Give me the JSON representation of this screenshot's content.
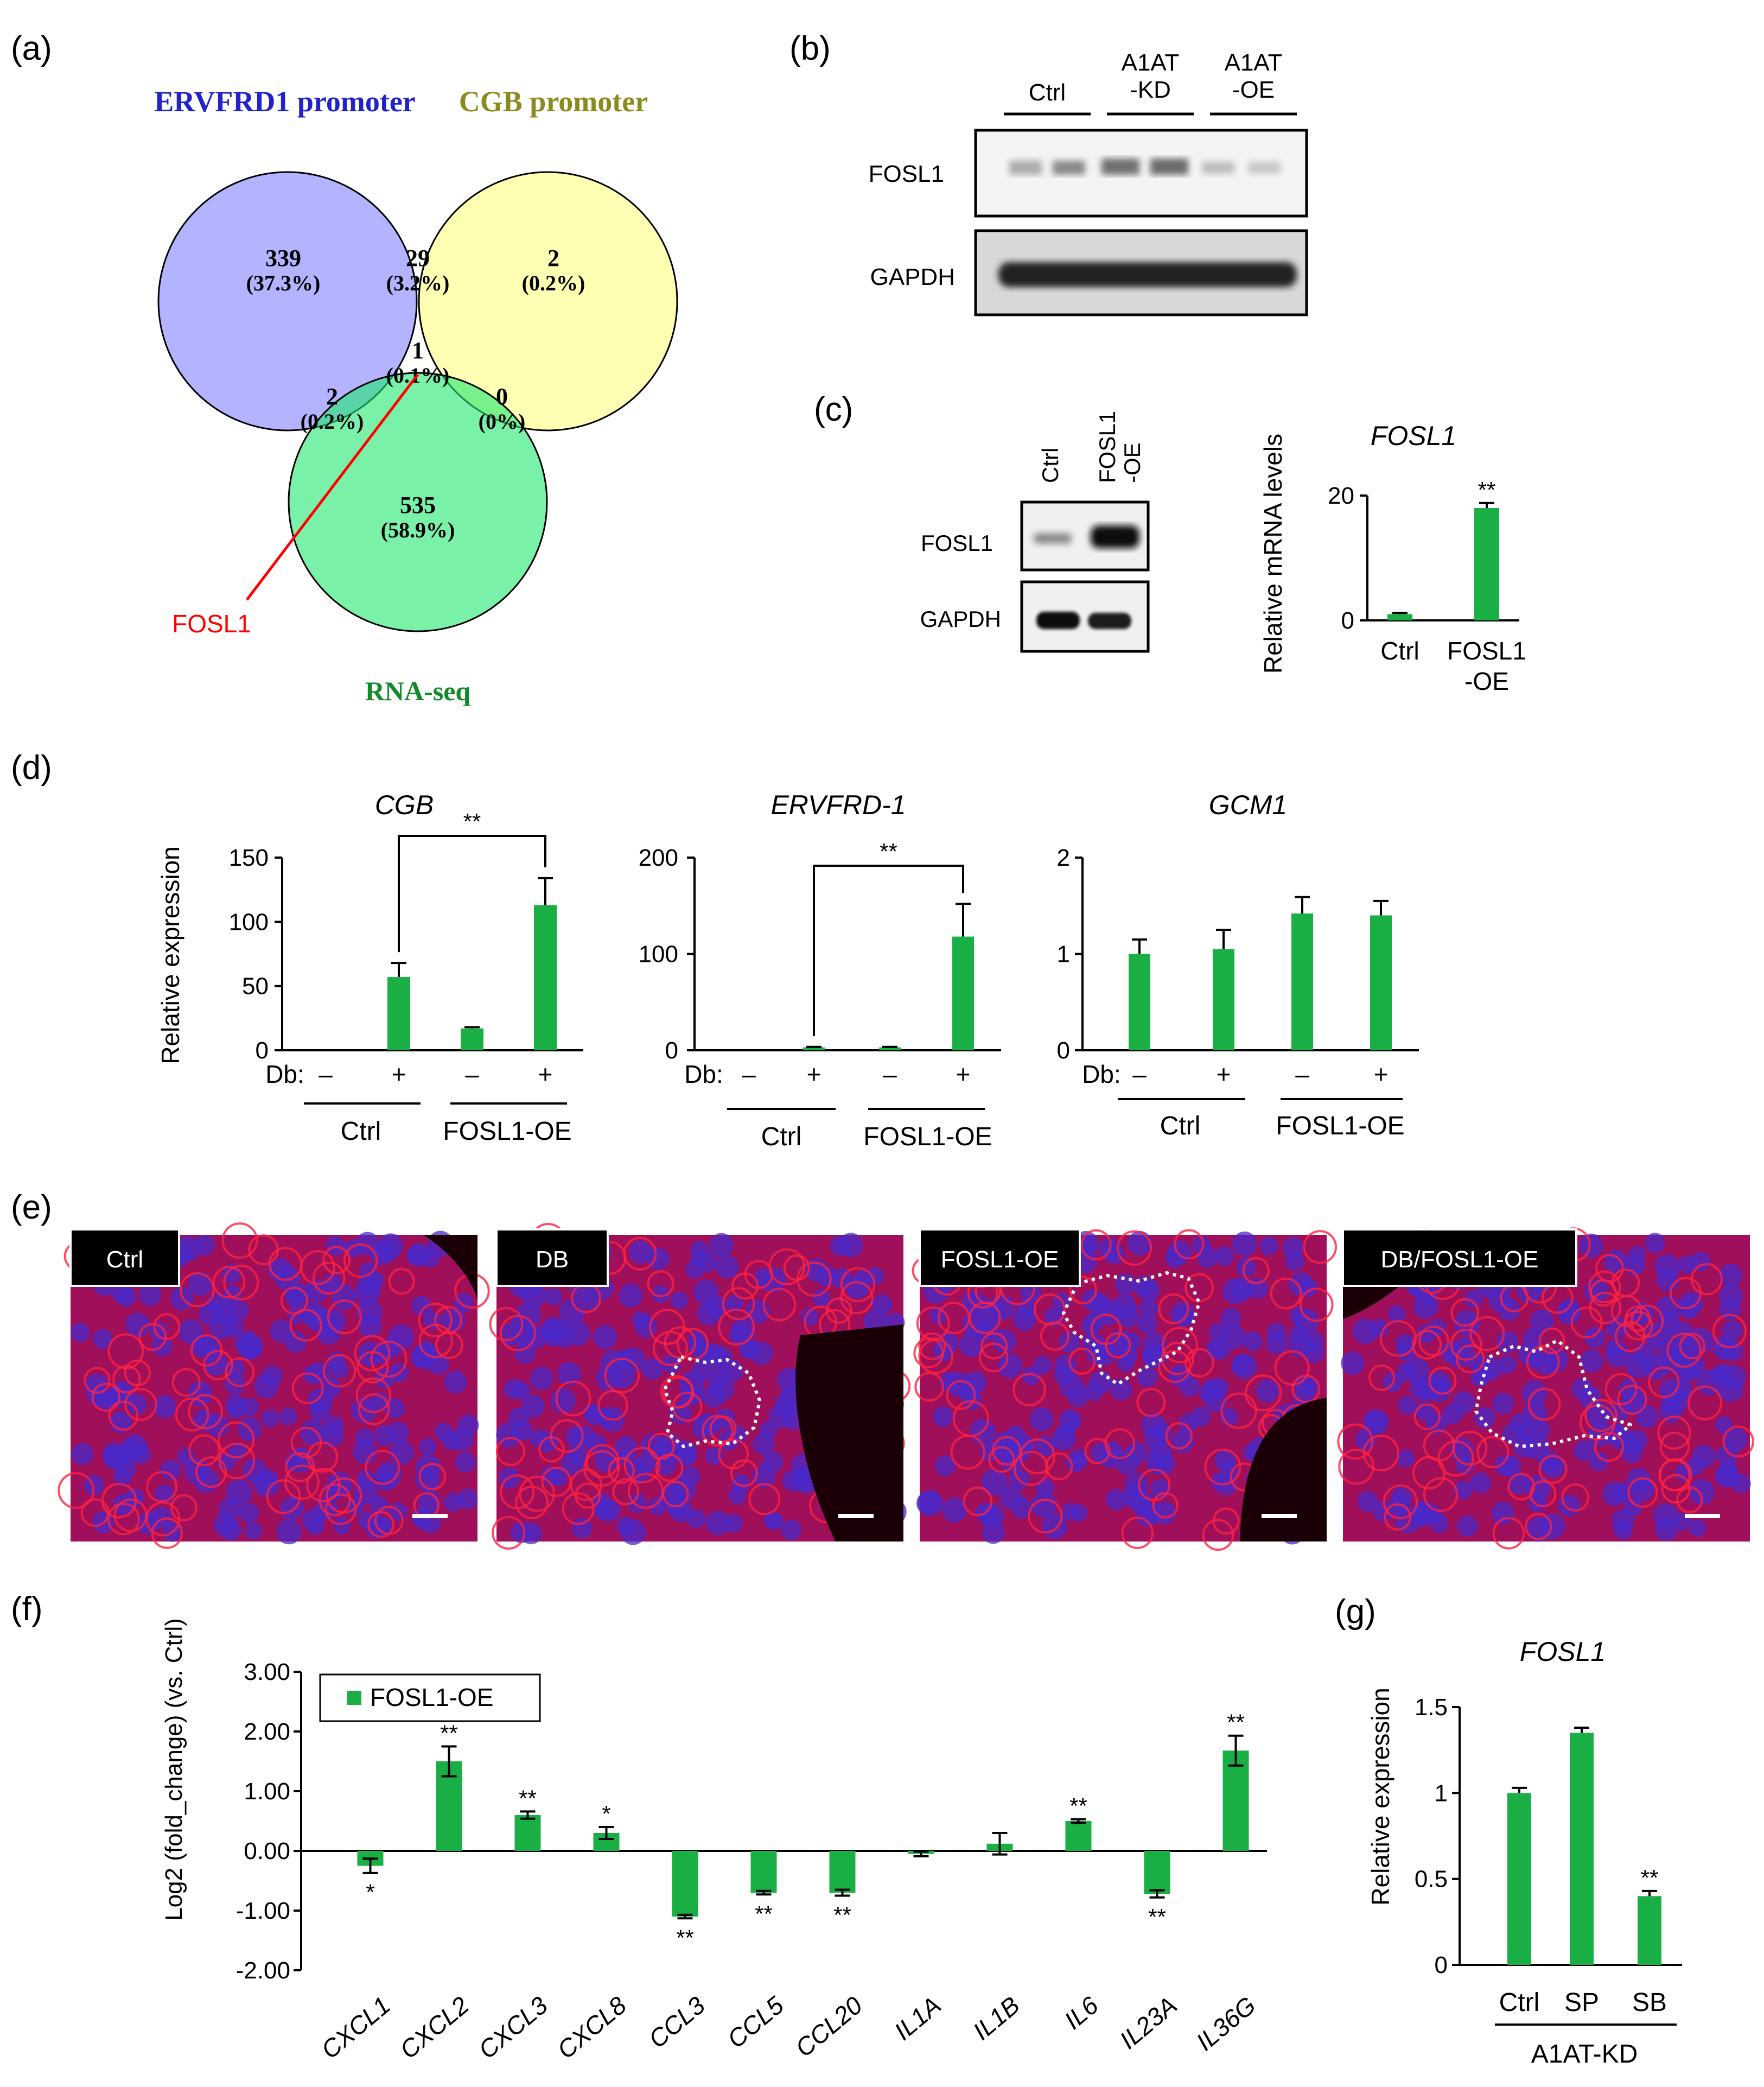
{
  "panel_a": {
    "label": "(a)",
    "set1": "ERVFRD1 promoter",
    "set2": "CGB promoter",
    "set3": "RNA-seq",
    "regions": [
      {
        "n": "339",
        "p": "(37.3%)"
      },
      {
        "n": "29",
        "p": "(3.2%)"
      },
      {
        "n": "2",
        "p": "(0.2%)"
      },
      {
        "n": "1",
        "p": "(0.1%)"
      },
      {
        "n": "2",
        "p": "(0.2%)"
      },
      {
        "n": "0",
        "p": "(0%)"
      },
      {
        "n": "535",
        "p": "(58.9%)"
      }
    ],
    "callout": "FOSL1",
    "colors": {
      "set1": "#8080ff",
      "set2": "#ffff80",
      "set3": "#20e870",
      "title1": "#2222cc",
      "title2": "#8a8a1e",
      "title3": "#118a2a",
      "callout": "#ff0000"
    }
  },
  "panel_b": {
    "label": "(b)",
    "groups": [
      "Ctrl",
      "A1AT\n-KD",
      "A1AT\n-OE"
    ],
    "rows": [
      "FOSL1",
      "GAPDH"
    ]
  },
  "panel_c": {
    "label": "(c)",
    "lanes": [
      "Ctrl",
      "FOSL1\n-OE"
    ],
    "rows": [
      "FOSL1",
      "GAPDH"
    ],
    "chart_data": {
      "type": "bar",
      "title": "FOSL1",
      "ylabel": "Relative  mRNA levels",
      "categories": [
        "Ctrl",
        "FOSL1\n-OE"
      ],
      "values": [
        1.0,
        18.0
      ],
      "errors": [
        0.2,
        0.8
      ],
      "significance": [
        "",
        "**"
      ],
      "ylim": [
        0,
        20
      ],
      "yticks": [
        "0",
        "20"
      ],
      "color": "#1aaf44"
    }
  },
  "panel_d": {
    "label": "(d)",
    "ylabel": "Relative expression",
    "db_label": "Db:",
    "db_signs": [
      "–",
      "+",
      "–",
      "+"
    ],
    "groups": [
      "Ctrl",
      "FOSL1-OE"
    ],
    "charts": [
      {
        "type": "bar",
        "title": "CGB",
        "values": [
          0,
          57,
          17,
          113
        ],
        "errors": [
          0,
          11,
          1,
          21
        ],
        "ylim": [
          0,
          150
        ],
        "yticks": [
          "0",
          "50",
          "100",
          "150"
        ],
        "bracket": "**"
      },
      {
        "type": "bar",
        "title": "ERVFRD-1",
        "values": [
          0,
          3,
          3,
          118
        ],
        "errors": [
          0,
          0.5,
          0.5,
          34
        ],
        "ylim": [
          0,
          200
        ],
        "yticks": [
          "0",
          "100",
          "200"
        ],
        "bracket": "**"
      },
      {
        "type": "bar",
        "title": "GCM1",
        "values": [
          1.0,
          1.05,
          1.42,
          1.4
        ],
        "errors": [
          0.15,
          0.2,
          0.17,
          0.15
        ],
        "ylim": [
          0,
          2
        ],
        "yticks": [
          "0",
          "1",
          "2"
        ],
        "bracket": ""
      }
    ]
  },
  "panel_e": {
    "label": "(e)",
    "images": [
      "Ctrl",
      "DB",
      "FOSL1-OE",
      "DB/FOSL1-OE"
    ]
  },
  "panel_f": {
    "label": "(f)",
    "chart_data": {
      "type": "bar",
      "ylabel": "Log2 (fold_change) (vs. Ctrl)",
      "legend": "FOSL1-OE",
      "categories": [
        "CXCL1",
        "CXCL2",
        "CXCL3",
        "CXCL8",
        "CCL3",
        "CCL5",
        "CCL20",
        "IL1A",
        "IL1B",
        "IL6",
        "IL23A",
        "IL36G"
      ],
      "values": [
        -0.25,
        1.5,
        0.6,
        0.3,
        -1.1,
        -0.7,
        -0.7,
        -0.05,
        0.12,
        0.5,
        -0.72,
        1.68
      ],
      "errors": [
        0.12,
        0.25,
        0.06,
        0.1,
        0.03,
        0.03,
        0.05,
        0.04,
        0.18,
        0.03,
        0.06,
        0.25
      ],
      "significance": [
        "*",
        "**",
        "**",
        "*",
        "**",
        "**",
        "**",
        "",
        "",
        "**",
        "**",
        "**"
      ],
      "ylim": [
        -2,
        3
      ],
      "yticks": [
        "-2.00",
        "-1.00",
        "0.00",
        "1.00",
        "2.00",
        "3.00"
      ],
      "color": "#1aaf44"
    }
  },
  "panel_g": {
    "label": "(g)",
    "chart_data": {
      "type": "bar",
      "title": "FOSL1",
      "ylabel": "Relative expression",
      "categories": [
        "Ctrl",
        "SP",
        "SB"
      ],
      "group": "A1AT-KD",
      "values": [
        1.0,
        1.35,
        0.4
      ],
      "errors": [
        0.03,
        0.03,
        0.03
      ],
      "significance": [
        "",
        "",
        "**"
      ],
      "ylim": [
        0,
        1.5
      ],
      "yticks": [
        "0",
        "0.5",
        "1",
        "1.5"
      ],
      "color": "#1aaf44"
    }
  }
}
